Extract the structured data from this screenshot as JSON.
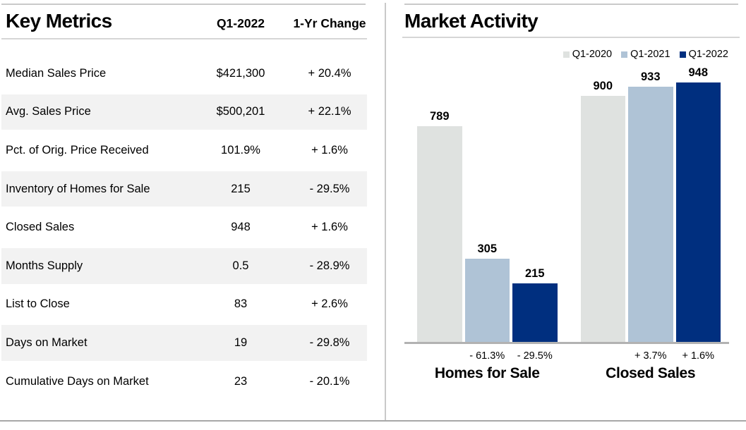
{
  "report": {
    "left_panel": {
      "title": "Key Metrics",
      "columns": {
        "period": "Q1-2022",
        "change": "1-Yr Change"
      },
      "rows": [
        {
          "label": "Median Sales Price",
          "value": "$421,300",
          "change": "+ 20.4%"
        },
        {
          "label": "Avg. Sales Price",
          "value": "$500,201",
          "change": "+ 22.1%"
        },
        {
          "label": "Pct. of Orig. Price Received",
          "value": "101.9%",
          "change": "+ 1.6%"
        },
        {
          "label": "Inventory of Homes for Sale",
          "value": "215",
          "change": "- 29.5%"
        },
        {
          "label": "Closed Sales",
          "value": "948",
          "change": "+ 1.6%"
        },
        {
          "label": "Months Supply",
          "value": "0.5",
          "change": "- 28.9%"
        },
        {
          "label": "List to Close",
          "value": "83",
          "change": "+ 2.6%"
        },
        {
          "label": "Days on Market",
          "value": "19",
          "change": "- 29.8%"
        },
        {
          "label": "Cumulative Days on Market",
          "value": "23",
          "change": "- 20.1%"
        }
      ]
    },
    "right_panel": {
      "title": "Market Activity"
    }
  },
  "chart_data": {
    "type": "bar",
    "title": "Market Activity",
    "categories": [
      "Homes for Sale",
      "Closed Sales"
    ],
    "series": [
      {
        "name": "Q1-2020",
        "values": [
          789,
          900
        ]
      },
      {
        "name": "Q1-2021",
        "values": [
          305,
          933
        ]
      },
      {
        "name": "Q1-2022",
        "values": [
          215,
          948
        ]
      }
    ],
    "series_colors": [
      "#dfe2e0",
      "#afc3d6",
      "#002f7f"
    ],
    "change_labels": [
      [
        "",
        "- 61.3%",
        "- 29.5%"
      ],
      [
        "",
        "+ 3.7%",
        "+ 1.6%"
      ]
    ],
    "bar_value_labels": true,
    "ylim": [
      0,
      1000
    ],
    "grid": false,
    "legend_position": "top-right"
  }
}
